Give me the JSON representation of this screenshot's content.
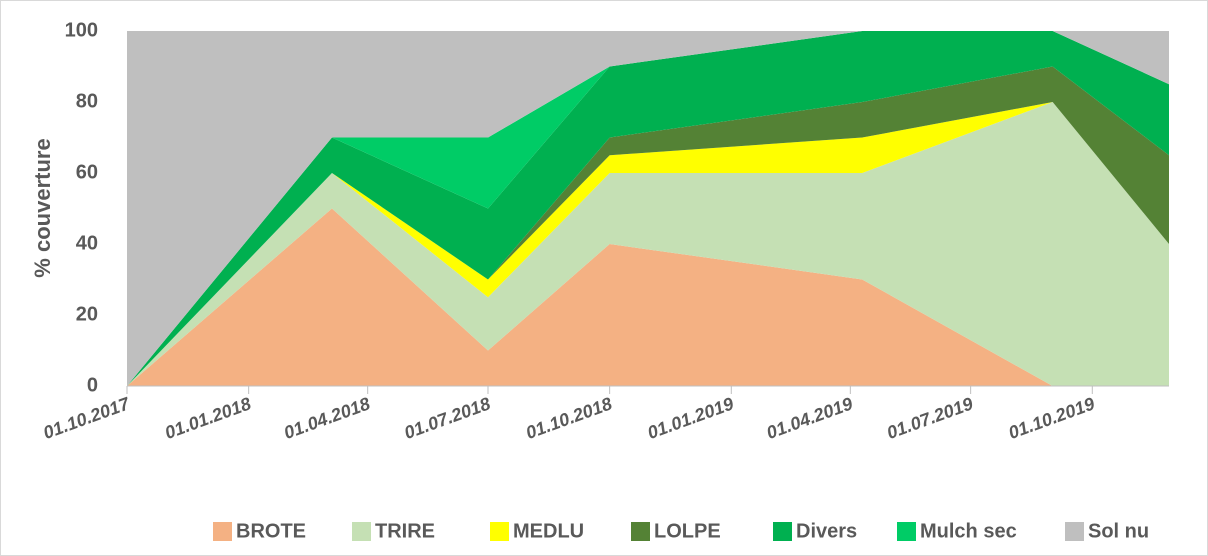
{
  "chart_data": {
    "type": "stacked_area",
    "y_label": "% couverture",
    "x": [
      "01.10.2017",
      "05.03.2018",
      "01.07.2018",
      "01.10.2018",
      "10.04.2019",
      "01.09.2019",
      "28.11.2019"
    ],
    "series": [
      {
        "name": "BROTE",
        "color": "#f4b183",
        "values": [
          0,
          50,
          10,
          40,
          30,
          0,
          0
        ]
      },
      {
        "name": "TRIRE",
        "color": "#c5e0b4",
        "values": [
          0,
          10,
          15,
          20,
          30,
          80,
          40
        ]
      },
      {
        "name": "MEDLU",
        "color": "#ffff00",
        "values": [
          0,
          0,
          5,
          5,
          10,
          0,
          0
        ]
      },
      {
        "name": "LOLPE",
        "color": "#548235",
        "values": [
          0,
          0,
          0,
          5,
          10,
          10,
          25
        ]
      },
      {
        "name": "Divers",
        "color": "#00b050",
        "values": [
          0,
          10,
          20,
          20,
          20,
          10,
          20
        ]
      },
      {
        "name": "Mulch sec",
        "color": "#00cc66",
        "values": [
          0,
          0,
          20,
          0,
          0,
          0,
          0
        ]
      },
      {
        "name": "Sol nu",
        "color": "#bfbfbf",
        "values": [
          100,
          30,
          30,
          10,
          0,
          0,
          15
        ]
      }
    ],
    "xlim": [
      "01.10.2017",
      "28.11.2019"
    ],
    "xticks": [
      "01.10.2017",
      "01.01.2018",
      "01.04.2018",
      "01.07.2018",
      "01.10.2018",
      "01.01.2019",
      "01.04.2019",
      "01.07.2019",
      "01.10.2019"
    ],
    "ylim": [
      0,
      100
    ],
    "yticks": [
      0,
      20,
      40,
      60,
      80,
      100
    ],
    "legend": "bottom"
  }
}
